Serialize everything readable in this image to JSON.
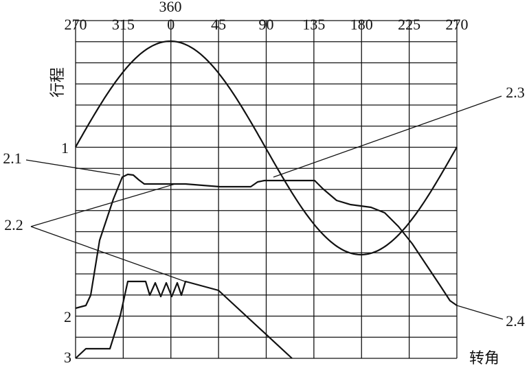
{
  "diagram": {
    "top_labels": [
      "270",
      "315",
      "0",
      "45",
      "90",
      "135",
      "180",
      "225",
      "270"
    ],
    "top_extra_label": "360",
    "y_axis_label": "行程",
    "x_axis_label": "转角",
    "left_labels": [
      "1",
      "2",
      "3"
    ],
    "callouts": [
      "2.1",
      "2.2",
      "2.3",
      "2.4"
    ]
  }
}
